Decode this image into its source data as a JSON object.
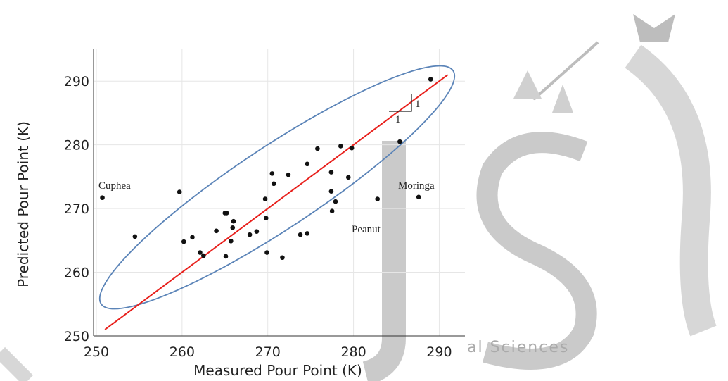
{
  "chart_data": {
    "type": "scatter",
    "x_label": "Measured Pour Point (K)",
    "y_label": "Predicted Pour Point (K)",
    "xlim": [
      250,
      293
    ],
    "ylim": [
      250,
      295
    ],
    "xticks": [
      250,
      260,
      270,
      280,
      290
    ],
    "yticks": [
      250,
      260,
      270,
      280,
      290
    ],
    "grid": true,
    "color": "#111111",
    "x": [
      250.7,
      254.5,
      259.7,
      260.2,
      261.2,
      262.1,
      262.5,
      264.0,
      265.0,
      265.2,
      266.0,
      265.9,
      265.7,
      265.1,
      267.9,
      268.7,
      269.8,
      269.7,
      270.5,
      270.7,
      272.4,
      269.9,
      271.7,
      273.8,
      274.6,
      274.6,
      275.8,
      277.4,
      277.5,
      277.4,
      277.9,
      278.5,
      279.4,
      279.8,
      282.8,
      285.4,
      287.6,
      289.0
    ],
    "y": [
      271.7,
      265.6,
      272.6,
      264.8,
      265.5,
      263.1,
      262.6,
      266.5,
      269.3,
      269.3,
      268.0,
      267.0,
      264.9,
      262.5,
      265.9,
      266.4,
      268.5,
      271.5,
      275.5,
      273.9,
      275.3,
      263.1,
      262.3,
      265.9,
      266.1,
      277.0,
      279.4,
      275.7,
      269.6,
      272.7,
      271.1,
      279.8,
      274.9,
      279.5,
      271.5,
      280.5,
      271.8,
      290.3
    ],
    "fit_line": {
      "color": "#e8201c",
      "x": [
        251,
        291
      ],
      "y": [
        251,
        291
      ]
    },
    "ellipse_color": "#5b84b8",
    "annotations": [
      "Cuphea",
      "Moringa",
      "Peanut",
      "1",
      "1"
    ],
    "watermark": "al Sciences"
  }
}
